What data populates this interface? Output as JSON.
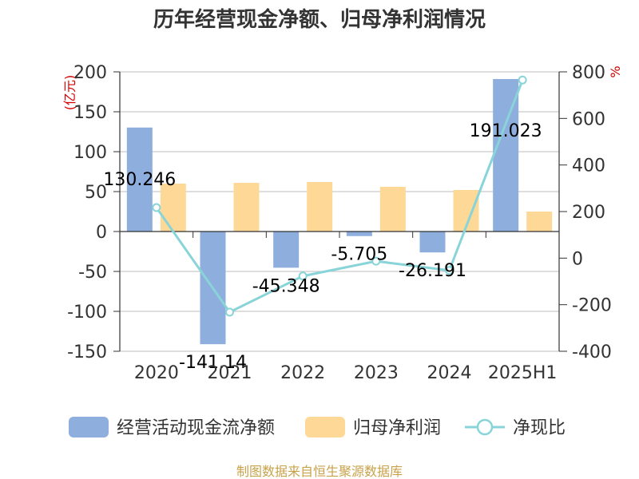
{
  "colors": {
    "bar1": "#8eaede",
    "bar2": "#fdd896",
    "line": "#88d4d8",
    "grid": "#bdbdbd",
    "axis": "#333333",
    "unit": "#d40000",
    "source": "#c8a24a"
  },
  "chart_data": {
    "type": "bar",
    "title": "历年经营现金净额、归母净利润情况",
    "categories": [
      "2020",
      "2021",
      "2022",
      "2023",
      "2024",
      "2025H1"
    ],
    "series": [
      {
        "name": "经营活动现金流净额",
        "type": "bar",
        "axis": "left",
        "values": [
          130.246,
          -141.14,
          -45.348,
          -5.705,
          -26.191,
          191.023
        ],
        "labels": [
          "130.246",
          "-141.14",
          "-45.348",
          "-5.705",
          "-26.191",
          "191.023"
        ]
      },
      {
        "name": "归母净利润",
        "type": "bar",
        "axis": "left",
        "values": [
          60,
          61,
          62,
          56,
          52,
          25
        ]
      },
      {
        "name": "净现比",
        "type": "line",
        "axis": "right",
        "values": [
          217,
          -232,
          -77,
          -13,
          -53,
          765
        ]
      }
    ],
    "y_left": {
      "unit": "(亿元)",
      "lim": [
        -150,
        200
      ],
      "ticks": [
        "200",
        "150",
        "100",
        "50",
        "0",
        "-50",
        "-100",
        "-150"
      ]
    },
    "y_right": {
      "unit": "%",
      "lim": [
        -400,
        800
      ],
      "ticks": [
        "800",
        "600",
        "400",
        "200",
        "0",
        "-200",
        "-400"
      ]
    },
    "grid": true,
    "legend": "bottom"
  },
  "source": "制图数据来自恒生聚源数据库"
}
